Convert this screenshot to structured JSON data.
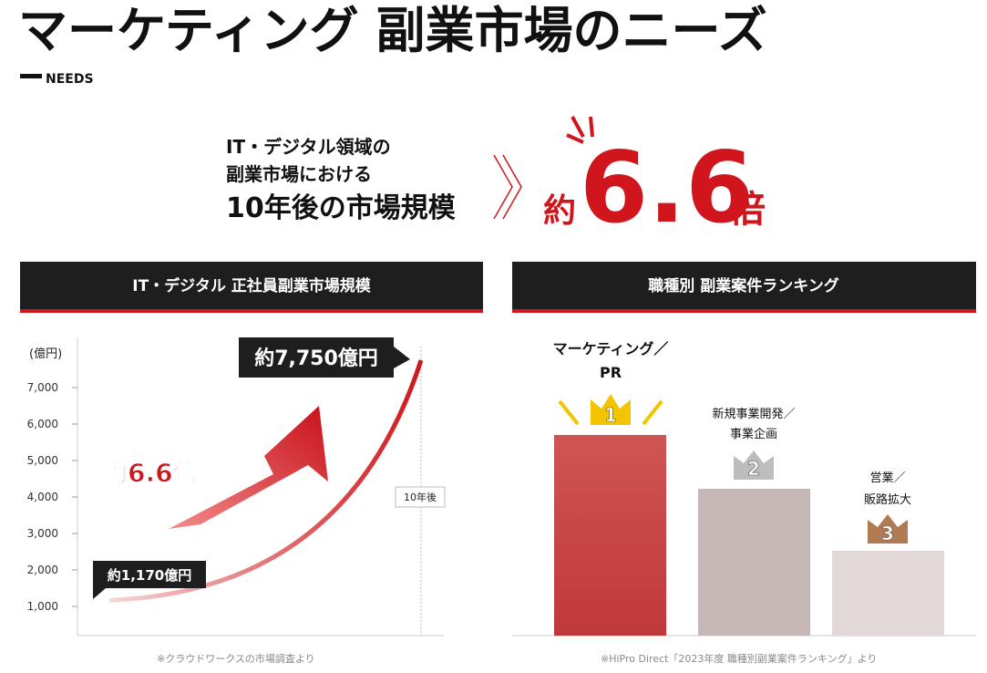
{
  "header": {
    "title": "マーケティング 副業市場のニーズ",
    "subtitle": "NEEDS"
  },
  "headline": {
    "lines": [
      "IT・デジタル領域の",
      "副業市場における",
      "10年後の市場規模"
    ],
    "prefix": "約",
    "multiple": "6.6",
    "suffix": "倍"
  },
  "chart_data": {
    "type": "line",
    "title": "IT・デジタル 正社員副業市場規模",
    "y_label": "(億円)",
    "categories": [
      null,
      "10年後"
    ],
    "series": [
      {
        "name": null,
        "color": "#d0161c",
        "values": [
          1170,
          7750
        ],
        "value_labels": [
          "約1,170億円",
          "約7,750億円"
        ]
      }
    ],
    "annotation": "約6.6倍",
    "ylim": [
      200,
      8400
    ],
    "yticks": [
      {
        "value": 1000,
        "label": "1,000"
      },
      {
        "value": 2000,
        "label": "2,000"
      },
      {
        "value": 3000,
        "label": "3,000"
      },
      {
        "value": 4000,
        "label": "4,000"
      },
      {
        "value": 5000,
        "label": "5,000"
      },
      {
        "value": 6000,
        "label": "6,000"
      },
      {
        "value": 7000,
        "label": "7,000"
      }
    ],
    "source": "※クラウドワークスの市場調査より"
  },
  "ranking": {
    "title": "職種別 副業案件ランキング",
    "items": [
      {
        "rank": "1",
        "lines": [
          "マーケティング／",
          "PR"
        ]
      },
      {
        "rank": "2",
        "lines": [
          "新規事業開発／",
          "事業企画"
        ]
      },
      {
        "rank": "3",
        "lines": [
          "営業／",
          "販路拡大"
        ]
      }
    ],
    "source": "※HiPro Direct「2023年度 職種別副業案件ランキング」より"
  }
}
